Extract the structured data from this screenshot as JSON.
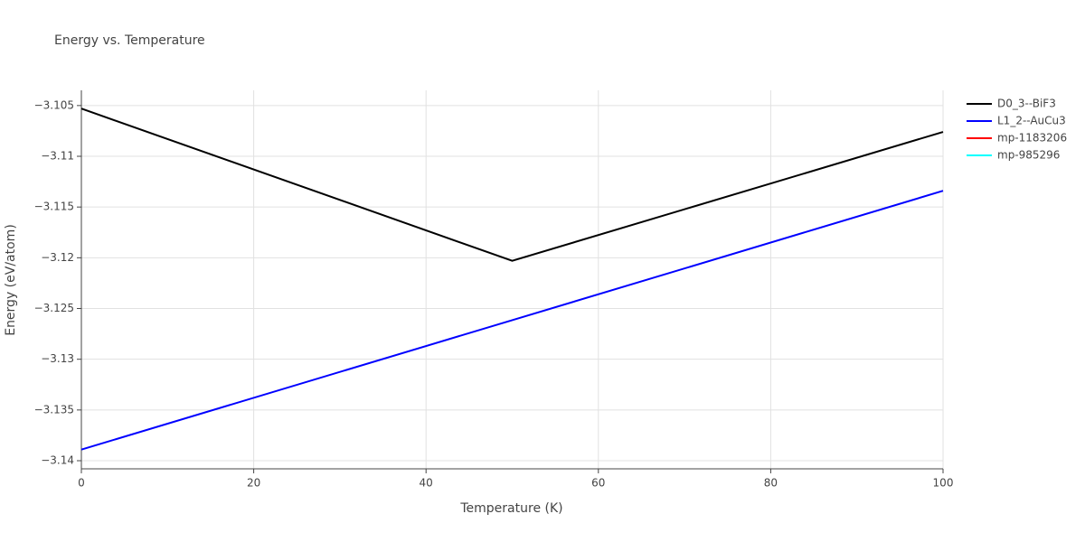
{
  "chart_data": {
    "type": "line",
    "title": "Energy vs. Temperature",
    "x_label": "Temperature (K)",
    "y_label": "Energy (eV/atom)",
    "x": [
      0,
      50,
      100
    ],
    "series": [
      {
        "name": "D0_3--BiF3",
        "color": "#000000",
        "values": [
          -3.1053,
          -3.1203,
          -3.1076
        ]
      },
      {
        "name": "L1_2--AuCu3",
        "color": "#0000ff",
        "values": [
          -3.1389,
          -3.12615,
          -3.1134
        ]
      },
      {
        "name": "mp-1183206",
        "color": "#ff0000",
        "values": [
          null,
          null,
          null
        ]
      },
      {
        "name": "mp-985296",
        "color": "#00ffff",
        "values": [
          null,
          null,
          null
        ]
      }
    ],
    "xlim": [
      0,
      100
    ],
    "xticks": [
      0,
      20,
      40,
      60,
      80,
      100
    ],
    "ylim": [
      -3.1408,
      -3.1035
    ],
    "yticks": [
      {
        "value": -3.14,
        "label": "−3.14"
      },
      {
        "value": -3.135,
        "label": "−3.135"
      },
      {
        "value": -3.13,
        "label": "−3.13"
      },
      {
        "value": -3.125,
        "label": "−3.125"
      },
      {
        "value": -3.12,
        "label": "−3.12"
      },
      {
        "value": -3.115,
        "label": "−3.115"
      },
      {
        "value": -3.11,
        "label": "−3.11"
      },
      {
        "value": -3.105,
        "label": "−3.105"
      }
    ],
    "grid": true
  }
}
